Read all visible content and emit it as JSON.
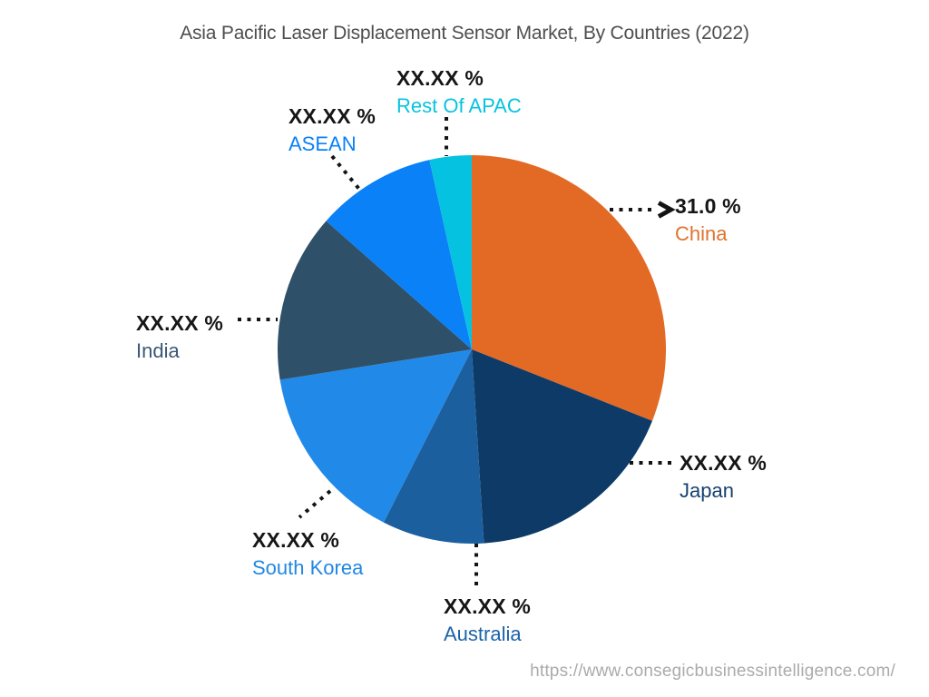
{
  "title": "Asia Pacific Laser Displacement Sensor Market, By Countries (2022)",
  "source_url": "https://www.consegicbusinessintelligence.com/",
  "chart_data": {
    "type": "pie",
    "title": "Asia Pacific Laser Displacement Sensor Market, By Countries (2022)",
    "unit": "%",
    "start_angle_deg": 0,
    "direction": "clockwise",
    "legend_position": "labels-around-pie",
    "slices": [
      {
        "label": "China",
        "value_label": "31.0 %",
        "value": 31.0,
        "share_pct_est": 31.0,
        "color": "#E36A25",
        "label_color": "#E0722E"
      },
      {
        "label": "Japan",
        "value_label": "XX.XX %",
        "value": null,
        "share_pct_est": 18.0,
        "color": "#0D3A66",
        "label_color": "#17416F"
      },
      {
        "label": "Australia",
        "value_label": "XX.XX %",
        "value": null,
        "share_pct_est": 8.5,
        "color": "#1B5F9E",
        "label_color": "#1C64A8"
      },
      {
        "label": "South Korea",
        "value_label": "XX.XX %",
        "value": null,
        "share_pct_est": 15.0,
        "color": "#2189E8",
        "label_color": "#2187E4"
      },
      {
        "label": "India",
        "value_label": "XX.XX %",
        "value": null,
        "share_pct_est": 14.0,
        "color": "#2F5069",
        "label_color": "#3A5876"
      },
      {
        "label": "ASEAN",
        "value_label": "XX.XX %",
        "value": null,
        "share_pct_est": 10.0,
        "color": "#0A81F7",
        "label_color": "#0A81F7"
      },
      {
        "label": "Rest Of APAC",
        "value_label": "XX.XX %",
        "value": null,
        "share_pct_est": 3.5,
        "color": "#05C2E0",
        "label_color": "#06C4DF"
      }
    ]
  }
}
